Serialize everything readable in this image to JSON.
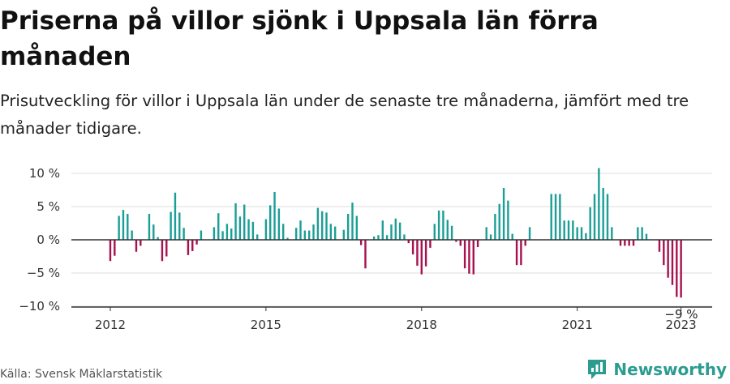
{
  "header": {
    "title": "Priserna på villor sjönk i Uppsala län förra månaden",
    "subtitle": "Prisutveckling för villor i Uppsala län under de senaste tre månaderna, jämfört med tre månader tidigare."
  },
  "footer": {
    "source": "Källa: Svensk Mäklarstatistik",
    "brand": "Newsworthy"
  },
  "colors": {
    "positive": "#1a9e96",
    "negative": "#a8104f",
    "grid": "#dddddd",
    "zero_line": "#333333",
    "brand": "#2b9c8f"
  },
  "chart_data": {
    "type": "bar",
    "title": "",
    "xlabel": "",
    "ylabel": "",
    "ylim": [
      -10,
      10
    ],
    "y_ticks": [
      {
        "value": 10,
        "label": "10 %"
      },
      {
        "value": 5,
        "label": "5 %"
      },
      {
        "value": 0,
        "label": "0 %"
      },
      {
        "value": -5,
        "label": "−5 %"
      },
      {
        "value": -10,
        "label": "−10 %"
      }
    ],
    "x_ticks": [
      "2012",
      "2015",
      "2018",
      "2021",
      "2023"
    ],
    "x_tick_positions": [
      2012.0,
      2015.0,
      2018.0,
      2021.0,
      2023.0
    ],
    "x_range": [
      2011.25,
      2023.6
    ],
    "grid": true,
    "last_label": "−9 %",
    "categories": [
      "2012-01",
      "2012-02",
      "2012-03",
      "2012-04",
      "2012-05",
      "2012-06",
      "2012-07",
      "2012-08",
      "2012-09",
      "2012-10",
      "2012-11",
      "2012-12",
      "2013-01",
      "2013-02",
      "2013-03",
      "2013-04",
      "2013-05",
      "2013-06",
      "2013-07",
      "2013-08",
      "2013-09",
      "2013-10",
      "2013-11",
      "2013-12",
      "2014-01",
      "2014-02",
      "2014-03",
      "2014-04",
      "2014-05",
      "2014-06",
      "2014-07",
      "2014-08",
      "2014-09",
      "2014-10",
      "2014-11",
      "2014-12",
      "2015-01",
      "2015-02",
      "2015-03",
      "2015-04",
      "2015-05",
      "2015-06",
      "2015-07",
      "2015-08",
      "2015-09",
      "2015-10",
      "2015-11",
      "2015-12",
      "2016-01",
      "2016-02",
      "2016-03",
      "2016-04",
      "2016-05",
      "2016-06",
      "2016-07",
      "2016-08",
      "2016-09",
      "2016-10",
      "2016-11",
      "2016-12",
      "2017-01",
      "2017-02",
      "2017-03",
      "2017-04",
      "2017-05",
      "2017-06",
      "2017-07",
      "2017-08",
      "2017-09",
      "2017-10",
      "2017-11",
      "2017-12",
      "2018-01",
      "2018-02",
      "2018-03",
      "2018-04",
      "2018-05",
      "2018-06",
      "2018-07",
      "2018-08",
      "2018-09",
      "2018-10",
      "2018-11",
      "2018-12",
      "2019-01",
      "2019-02",
      "2019-03",
      "2019-04",
      "2019-05",
      "2019-06",
      "2019-07",
      "2019-08",
      "2019-09",
      "2019-10",
      "2019-11",
      "2019-12",
      "2020-01",
      "2020-02",
      "2020-03",
      "2020-04",
      "2020-05",
      "2020-06",
      "2020-07",
      "2020-08",
      "2020-09",
      "2020-10",
      "2020-11",
      "2020-12",
      "2021-01",
      "2021-02",
      "2021-03",
      "2021-04",
      "2021-05",
      "2021-06",
      "2021-07",
      "2021-08",
      "2021-09",
      "2021-10",
      "2021-11",
      "2021-12",
      "2022-01",
      "2022-02",
      "2022-03",
      "2022-04",
      "2022-05",
      "2022-06",
      "2022-07",
      "2022-08",
      "2022-09",
      "2022-10",
      "2022-11",
      "2022-12",
      "2023-01",
      "2023-02"
    ],
    "values": [
      -3.2,
      -2.4,
      3.6,
      4.5,
      3.9,
      1.4,
      -1.8,
      -0.9,
      null,
      3.9,
      2.3,
      0.4,
      -3.2,
      -2.5,
      4.2,
      7.1,
      4.1,
      1.8,
      -2.3,
      -1.7,
      -0.7,
      1.4,
      null,
      null,
      1.9,
      4.0,
      1.3,
      2.4,
      1.7,
      5.5,
      3.5,
      5.3,
      3.1,
      2.7,
      0.8,
      null,
      3.1,
      5.2,
      7.2,
      4.7,
      2.4,
      0.3,
      null,
      1.8,
      2.9,
      1.4,
      1.4,
      2.3,
      4.8,
      4.3,
      4.1,
      2.4,
      2.0,
      null,
      1.5,
      3.9,
      5.6,
      3.6,
      -0.8,
      -4.3,
      null,
      0.5,
      0.7,
      2.9,
      0.7,
      2.3,
      3.2,
      2.6,
      0.8,
      -0.5,
      -2.2,
      -3.9,
      -5.2,
      -4.0,
      -1.2,
      2.4,
      4.4,
      4.4,
      3.0,
      2.1,
      -0.3,
      -0.9,
      -4.3,
      -5.1,
      -5.2,
      -1.1,
      null,
      1.9,
      0.8,
      3.9,
      5.4,
      7.8,
      5.9,
      0.9,
      -3.8,
      -3.8,
      -0.9,
      1.9,
      null,
      null,
      null,
      null,
      6.9,
      6.9,
      6.9,
      2.9,
      2.9,
      2.9,
      1.9,
      1.9,
      1.0,
      4.9,
      6.9,
      10.8,
      7.8,
      6.9,
      1.9,
      null,
      -0.9,
      -0.9,
      -0.9,
      -0.9,
      1.9,
      1.9,
      0.9,
      null,
      null,
      -1.8,
      -3.8,
      -5.7,
      -6.8,
      -8.6,
      -8.7,
      null
    ]
  }
}
